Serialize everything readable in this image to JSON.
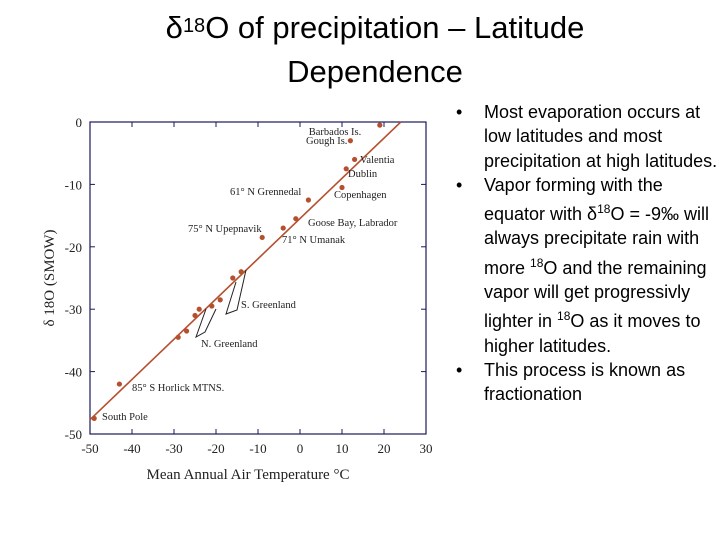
{
  "slide": {
    "title_line1_prefix": "δ",
    "title_line1_sup": "18",
    "title_line1_suffix": "O of precipitation – Latitude",
    "title_line2": "Dependence"
  },
  "bullets": [
    {
      "marker": "•",
      "parts": [
        "Most evaporation occurs at low latitudes and most precipitation at high latitudes."
      ]
    },
    {
      "marker": "•",
      "parts": [
        "Vapor forming with the equator with δ",
        "18",
        "O = -9‰ will always precipitate rain with more ",
        "18",
        "O and the remaining vapor will get progressivly lighter in ",
        "18",
        "O as it moves to higher latitudes."
      ]
    },
    {
      "marker": "•",
      "parts": [
        "This process is known as fractionation"
      ]
    }
  ],
  "chart_data": {
    "type": "scatter",
    "xlabel": "Mean Annual Air Temperature °C",
    "ylabel": "δ 18O (SMOW)",
    "xlim": [
      -50,
      30
    ],
    "ylim": [
      -50,
      0
    ],
    "xticks": [
      -50,
      -40,
      -30,
      -20,
      -10,
      0,
      10,
      20,
      30
    ],
    "yticks": [
      0,
      -10,
      -20,
      -30,
      -40,
      -50
    ],
    "colors": {
      "line": "#b5502e",
      "points": "#b5502e",
      "axis": "#1a1a5a"
    },
    "fit_line": [
      [
        -50,
        -47.7
      ],
      [
        24,
        0
      ]
    ],
    "points": [
      {
        "x": -49,
        "y": -47.5
      },
      {
        "x": -43,
        "y": -42
      },
      {
        "x": -29,
        "y": -34.5
      },
      {
        "x": -27,
        "y": -33.5
      },
      {
        "x": -25,
        "y": -31
      },
      {
        "x": -24,
        "y": -30
      },
      {
        "x": -21,
        "y": -29.5
      },
      {
        "x": -19,
        "y": -28.5
      },
      {
        "x": -16,
        "y": -25
      },
      {
        "x": -14,
        "y": -24
      },
      {
        "x": -9,
        "y": -18.5
      },
      {
        "x": -4,
        "y": -17
      },
      {
        "x": -1,
        "y": -15.5
      },
      {
        "x": 2,
        "y": -12.5
      },
      {
        "x": 10,
        "y": -10.5
      },
      {
        "x": 11,
        "y": -7.5
      },
      {
        "x": 13,
        "y": -6
      },
      {
        "x": 12,
        "y": -3
      },
      {
        "x": 19,
        "y": -0.5
      }
    ],
    "annotations": [
      "Barbados Is.",
      "Gough Is.",
      "Valentia",
      "Dublin",
      "61° N Grennedal",
      "Copenhagen",
      "75° N Upepnavik",
      "Goose Bay, Labrador",
      "71° N Umanak",
      "S. Greenland",
      "N. Greenland",
      "85° S Horlick MTNS.",
      "South Pole"
    ]
  }
}
